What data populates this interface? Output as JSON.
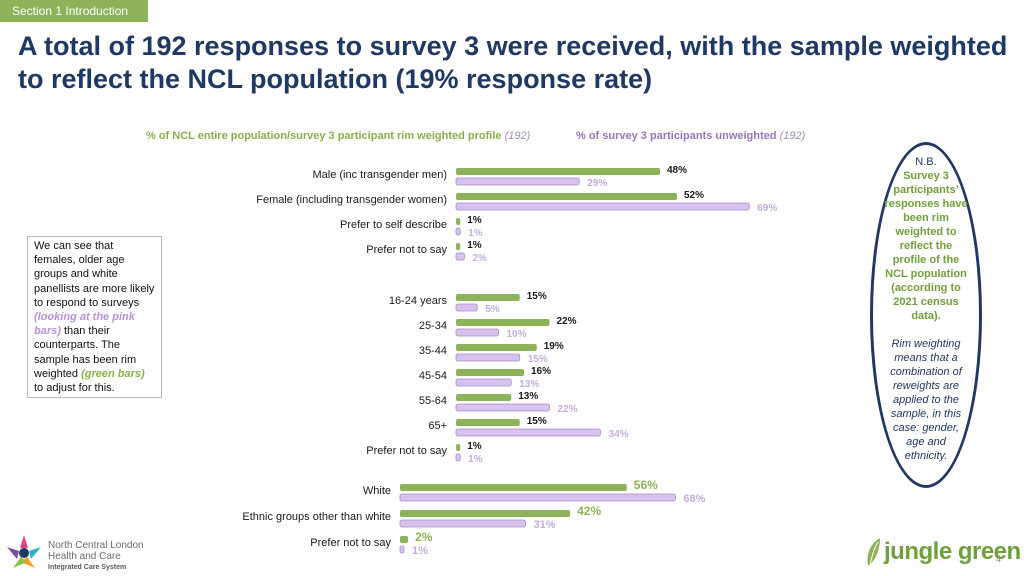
{
  "section_label": "Section 1 Introduction",
  "title": "A total of 192 responses to survey 3 were received, with the sample weighted to reflect the NCL population (19% response rate)",
  "legend": {
    "green_label": "% of NCL entire population/survey 3 participant rim weighted profile",
    "green_n": "(192)",
    "pink_label": "% of survey 3 participants unweighted",
    "pink_n": "(192)"
  },
  "callout": {
    "p1": "We can see that females, older age groups and white panellists are more likely to respond to surveys",
    "p2": "(looking at the pink bars)",
    "p3": "than their counterparts. The sample has been rim weighted",
    "p4": "(green bars)",
    "p5": "to adjust for this."
  },
  "nb": {
    "heading": "N.B.",
    "text": "Survey 3 participants’ responses have been rim weighted to reflect the profile of the NCL population (according to 2021 census data).",
    "italic": "Rim weighting means that a combination of reweights are applied to the sample, in this case: gender, age and ethnicity."
  },
  "logo_ncl": {
    "line1": "North Central London",
    "line2": "Health and Care",
    "line3": "Integrated Care System"
  },
  "logo_jungle": "jungle green",
  "page_number": "4",
  "colors": {
    "green": "#8db35a",
    "pink": "#d8c3ee",
    "green_label": "#1a1a1a",
    "pink_label": "#c4aee0",
    "title": "#1f3864"
  },
  "chart_data": [
    {
      "type": "bar",
      "orientation": "horizontal",
      "categories": [
        "Male (inc transgender men)",
        "Female (including transgender women)",
        "Prefer to self describe",
        "Prefer not to say"
      ],
      "series": [
        {
          "name": "% of NCL entire population/survey 3 participant rim weighted profile (192)",
          "values": [
            48,
            52,
            1,
            1
          ]
        },
        {
          "name": "% of survey 3 participants unweighted (192)",
          "values": [
            29,
            69,
            1,
            2
          ]
        }
      ],
      "unit": "%"
    },
    {
      "type": "bar",
      "orientation": "horizontal",
      "categories": [
        "16-24 years",
        "25-34",
        "35-44",
        "45-54",
        "55-64",
        "65+",
        "Prefer not to say"
      ],
      "series": [
        {
          "name": "% of NCL entire population/survey 3 participant rim weighted profile (192)",
          "values": [
            15,
            22,
            19,
            16,
            13,
            15,
            1
          ]
        },
        {
          "name": "% of survey 3 participants unweighted (192)",
          "values": [
            5,
            10,
            15,
            13,
            22,
            34,
            1
          ]
        }
      ],
      "unit": "%"
    },
    {
      "type": "bar",
      "orientation": "horizontal",
      "categories": [
        "White",
        "Ethnic groups other than white",
        "Prefer not to say"
      ],
      "series": [
        {
          "name": "% of NCL entire population/survey 3 participant rim weighted profile (192)",
          "values": [
            56,
            42,
            2
          ]
        },
        {
          "name": "% of survey 3 participants unweighted (192)",
          "values": [
            68,
            31,
            1
          ]
        }
      ],
      "unit": "%"
    }
  ]
}
